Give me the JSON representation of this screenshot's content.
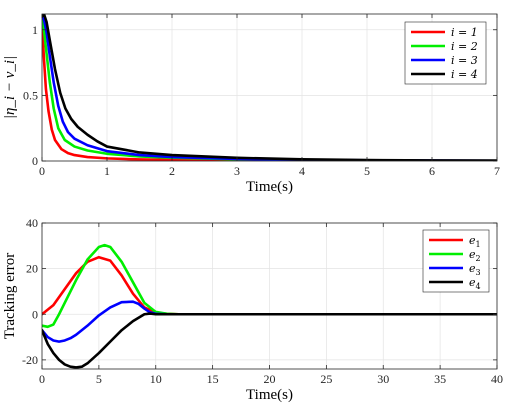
{
  "chart_data": [
    {
      "type": "line",
      "title": "",
      "xlabel": "Time(s)",
      "ylabel": "|η_i − v_i|",
      "xlim": [
        0,
        7
      ],
      "ylim": [
        0,
        1.12
      ],
      "xticks": [
        0,
        1,
        2,
        3,
        4,
        5,
        6,
        7
      ],
      "yticks": [
        0,
        0.5,
        1
      ],
      "xtick_labels": [
        "0",
        "1",
        "2",
        "3",
        "4",
        "5",
        "6",
        "7"
      ],
      "ytick_labels": [
        "0",
        "0.5",
        "1"
      ],
      "grid": true,
      "legend_position": "top-right",
      "series": [
        {
          "name": "i = 1",
          "color": "#ff0000",
          "x": [
            0,
            0.03,
            0.06,
            0.1,
            0.15,
            0.2,
            0.3,
            0.4,
            0.5,
            0.7,
            1.0,
            1.5,
            2,
            3,
            4,
            5,
            6,
            7
          ],
          "y": [
            1.05,
            0.78,
            0.55,
            0.38,
            0.24,
            0.16,
            0.09,
            0.06,
            0.045,
            0.03,
            0.02,
            0.012,
            0.008,
            0.004,
            0.002,
            0.001,
            0.0005,
            0
          ]
        },
        {
          "name": "i = 2",
          "color": "#00ee00",
          "x": [
            0,
            0.03,
            0.07,
            0.12,
            0.18,
            0.25,
            0.35,
            0.5,
            0.7,
            1.0,
            1.5,
            2,
            3,
            4,
            5,
            6,
            7
          ],
          "y": [
            1.08,
            1.0,
            0.82,
            0.6,
            0.4,
            0.25,
            0.16,
            0.11,
            0.08,
            0.055,
            0.035,
            0.025,
            0.013,
            0.007,
            0.004,
            0.002,
            0.001
          ]
        },
        {
          "name": "i = 3",
          "color": "#0000ff",
          "x": [
            0,
            0.03,
            0.07,
            0.12,
            0.18,
            0.25,
            0.32,
            0.4,
            0.5,
            0.7,
            1.0,
            1.5,
            2,
            3,
            4,
            5,
            6,
            7
          ],
          "y": [
            1.1,
            1.08,
            0.98,
            0.8,
            0.6,
            0.42,
            0.3,
            0.22,
            0.17,
            0.12,
            0.075,
            0.045,
            0.03,
            0.016,
            0.009,
            0.005,
            0.003,
            0.002
          ]
        },
        {
          "name": "i = 4",
          "color": "#000000",
          "x": [
            0,
            0.03,
            0.07,
            0.12,
            0.2,
            0.28,
            0.36,
            0.45,
            0.55,
            0.7,
            0.85,
            1.0,
            1.5,
            2,
            3,
            4,
            5,
            6,
            7
          ],
          "y": [
            1.1,
            1.12,
            1.06,
            0.92,
            0.7,
            0.52,
            0.4,
            0.32,
            0.26,
            0.2,
            0.15,
            0.11,
            0.065,
            0.045,
            0.024,
            0.013,
            0.007,
            0.004,
            0.003
          ]
        }
      ]
    },
    {
      "type": "line",
      "title": "",
      "xlabel": "Time(s)",
      "ylabel": "Tracking error",
      "xlim": [
        0,
        40
      ],
      "ylim": [
        -24,
        40
      ],
      "xticks": [
        0,
        5,
        10,
        15,
        20,
        25,
        30,
        35,
        40
      ],
      "yticks": [
        -20,
        0,
        20,
        40
      ],
      "xtick_labels": [
        "0",
        "5",
        "10",
        "15",
        "20",
        "25",
        "30",
        "35",
        "40"
      ],
      "ytick_labels": [
        "-20",
        "0",
        "20",
        "40"
      ],
      "grid": true,
      "legend_position": "top-right",
      "series": [
        {
          "name": "e1",
          "color": "#ff0000",
          "x": [
            0,
            1,
            2,
            3,
            4,
            5,
            6,
            7,
            8,
            9,
            10,
            11,
            12,
            13,
            15,
            20,
            25,
            30,
            35,
            40
          ],
          "y": [
            0,
            4,
            11,
            18,
            23,
            25,
            23.5,
            17,
            9,
            3,
            0.7,
            0.2,
            0,
            0,
            0,
            0,
            0,
            0,
            0,
            0
          ]
        },
        {
          "name": "e2",
          "color": "#00ee00",
          "x": [
            0,
            0.5,
            1,
            1.5,
            2,
            3,
            4,
            5,
            5.5,
            6,
            7,
            8,
            9,
            10,
            11,
            12,
            13,
            15,
            20,
            25,
            30,
            35,
            40
          ],
          "y": [
            -5,
            -5.5,
            -4.5,
            0,
            5,
            15,
            24,
            29.5,
            30.3,
            29.5,
            23,
            14,
            5,
            1,
            0.2,
            0,
            0,
            0,
            0,
            0,
            0,
            0,
            0
          ]
        },
        {
          "name": "e3",
          "color": "#0000ff",
          "x": [
            0,
            0.5,
            1,
            1.5,
            2,
            2.5,
            3,
            4,
            5,
            6,
            7,
            8,
            8.5,
            9,
            9.5,
            10,
            11,
            12,
            15,
            20,
            25,
            30,
            35,
            40
          ],
          "y": [
            -7,
            -10,
            -11.5,
            -12,
            -11.5,
            -10.5,
            -9,
            -5,
            -0.5,
            3,
            5.3,
            5.5,
            4.5,
            2.5,
            0.8,
            0.2,
            0,
            0,
            0,
            0,
            0,
            0,
            0,
            0
          ]
        },
        {
          "name": "e4",
          "color": "#000000",
          "x": [
            0,
            0.5,
            1,
            1.5,
            2,
            2.5,
            3,
            3.5,
            4,
            5,
            6,
            7,
            8,
            9,
            9.5,
            10,
            11,
            15,
            20,
            25,
            30,
            35,
            40
          ],
          "y": [
            -7,
            -13,
            -17,
            -20,
            -22,
            -23,
            -23.3,
            -23,
            -21.5,
            -17,
            -12,
            -7,
            -3,
            0,
            0.3,
            0,
            0,
            0,
            0,
            0,
            0,
            0,
            0
          ]
        }
      ]
    }
  ]
}
